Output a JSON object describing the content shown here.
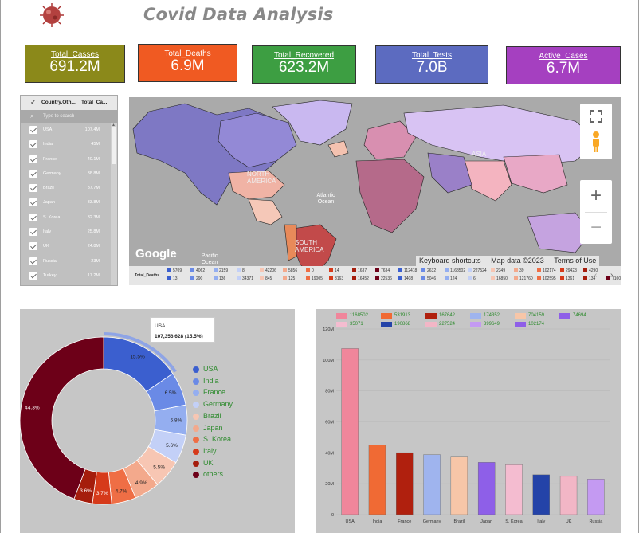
{
  "header": {
    "title": "Covid Data Analysis"
  },
  "kpis": [
    {
      "label": "Total_Casses",
      "value": "691.2M",
      "color": "#8b891a"
    },
    {
      "label": "Total_Deaths",
      "value": "6.9M",
      "color": "#f05a22"
    },
    {
      "label": "Total_Recovered",
      "value": "623.2M",
      "color": "#3d9e42"
    },
    {
      "label": "Total_Tests",
      "value": "7.0B",
      "color": "#5c6bc0"
    },
    {
      "label": "Active_Cases",
      "value": "6.7M",
      "color": "#a540c0"
    }
  ],
  "filter": {
    "col1": "Country,Oth...",
    "col2": "Total_Ca...",
    "placeholder": "Type to search",
    "rows": [
      {
        "country": "USA",
        "value": "107.4M"
      },
      {
        "country": "India",
        "value": "45M"
      },
      {
        "country": "France",
        "value": "40.1M"
      },
      {
        "country": "Germany",
        "value": "38.8M"
      },
      {
        "country": "Brazil",
        "value": "37.7M"
      },
      {
        "country": "Japan",
        "value": "33.8M"
      },
      {
        "country": "S. Korea",
        "value": "32.3M"
      },
      {
        "country": "Italy",
        "value": "25.8M"
      },
      {
        "country": "UK",
        "value": "24.8M"
      },
      {
        "country": "Russia",
        "value": "23M"
      },
      {
        "country": "Turkey",
        "value": "17.2M"
      }
    ]
  },
  "map": {
    "labels": {
      "north_america": "NORTH AMERICA",
      "south_america": "SOUTH AMERICA",
      "asia": "ASIA",
      "atlantic": "Atlantic Ocean",
      "pacific": "Pacific Ocean"
    },
    "google": "Google",
    "footer": {
      "shortcuts": "Keyboard shortcuts",
      "mapdata": "Map data ©2023",
      "terms": "Terms of Use"
    },
    "legend_title": "Total_Deaths",
    "legend_row1": [
      "5709",
      "4062",
      "2159",
      "8",
      "42206",
      "5856",
      "0",
      "14",
      "1637",
      "7634",
      "112418",
      "2632",
      "1168502",
      "227524",
      "2349",
      "39",
      "102174",
      "29423",
      "4290"
    ],
    "legend_row2": [
      "13",
      "290",
      "136",
      "34371",
      "845",
      "125",
      "19005",
      "3163",
      "16452",
      "22536",
      "1408",
      "5046",
      "124",
      "6",
      "16850",
      "121760",
      "102595",
      "1361",
      "134",
      "7100"
    ]
  },
  "donut": {
    "tooltip_country": "USA",
    "tooltip_value": "107,356,628 (15.5%)",
    "legend": [
      "USA",
      "India",
      "France",
      "Germany",
      "Brazil",
      "Japan",
      "S. Korea",
      "Italy",
      "UK",
      "others"
    ],
    "colors": [
      "#3b5fcf",
      "#6a8ae6",
      "#94aef0",
      "#c3d0f7",
      "#f7c6b3",
      "#f3a98c",
      "#ef6e45",
      "#d63a1a",
      "#a51d0c",
      "#6d0018"
    ],
    "values": [
      15.5,
      6.5,
      5.8,
      5.6,
      5.5,
      4.9,
      4.7,
      3.7,
      3.6,
      44.3
    ],
    "labels": [
      "15.5%",
      "6.5%",
      "5.8%",
      "5.6%",
      "5.5%",
      "4.9%",
      "4.7%",
      "3.7%",
      "3.6%",
      "44.3%"
    ]
  },
  "chart_data": {
    "type": "bar",
    "categories": [
      "USA",
      "India",
      "France",
      "Germany",
      "Brazil",
      "Japan",
      "S. Korea",
      "Italy",
      "UK",
      "Russia"
    ],
    "values": [
      107.4,
      45.0,
      40.1,
      38.8,
      37.7,
      33.8,
      32.3,
      25.8,
      24.8,
      23.0
    ],
    "colors": [
      "#f0869b",
      "#f06a34",
      "#b0200e",
      "#9fb4ee",
      "#f7c6a8",
      "#8e5fe8",
      "#f4bcd0",
      "#2443a8",
      "#f2b6c6",
      "#c49af2"
    ],
    "ylim": [
      0,
      120
    ],
    "yticks": [
      "0",
      "20M",
      "40M",
      "60M",
      "80M",
      "100M",
      "120M"
    ],
    "legend": [
      {
        "label": "1168502",
        "color": "#f0869b"
      },
      {
        "label": "531913",
        "color": "#f06a34"
      },
      {
        "label": "167642",
        "color": "#b0200e"
      },
      {
        "label": "174352",
        "color": "#9fb4ee"
      },
      {
        "label": "704159",
        "color": "#f7c6a8"
      },
      {
        "label": "74694",
        "color": "#8e5fe8"
      },
      {
        "label": "35071",
        "color": "#f4bcd0"
      },
      {
        "label": "190868",
        "color": "#2443a8"
      },
      {
        "label": "227524",
        "color": "#f2b6c6"
      },
      {
        "label": "399649",
        "color": "#c49af2"
      },
      {
        "label": "102174",
        "color": "#8e5fe8"
      }
    ]
  }
}
